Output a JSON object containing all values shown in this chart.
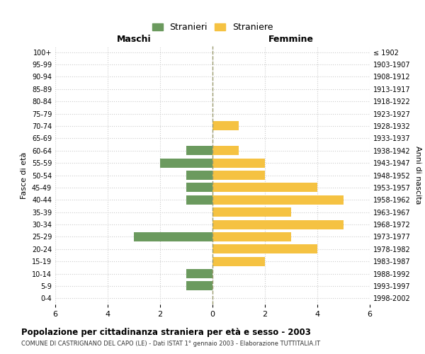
{
  "age_groups": [
    "0-4",
    "5-9",
    "10-14",
    "15-19",
    "20-24",
    "25-29",
    "30-34",
    "35-39",
    "40-44",
    "45-49",
    "50-54",
    "55-59",
    "60-64",
    "65-69",
    "70-74",
    "75-79",
    "80-84",
    "85-89",
    "90-94",
    "95-99",
    "100+"
  ],
  "birth_years": [
    "1998-2002",
    "1993-1997",
    "1988-1992",
    "1983-1987",
    "1978-1982",
    "1973-1977",
    "1968-1972",
    "1963-1967",
    "1958-1962",
    "1953-1957",
    "1948-1952",
    "1943-1947",
    "1938-1942",
    "1933-1937",
    "1928-1932",
    "1923-1927",
    "1918-1922",
    "1913-1917",
    "1908-1912",
    "1903-1907",
    "≤ 1902"
  ],
  "males": [
    0,
    1,
    1,
    0,
    0,
    3,
    0,
    0,
    1,
    1,
    1,
    2,
    1,
    0,
    0,
    0,
    0,
    0,
    0,
    0,
    0
  ],
  "females": [
    0,
    0,
    0,
    2,
    4,
    3,
    5,
    3,
    5,
    4,
    2,
    2,
    1,
    0,
    1,
    0,
    0,
    0,
    0,
    0,
    0
  ],
  "male_color": "#6b9a5e",
  "female_color": "#f5c242",
  "title": "Popolazione per cittadinanza straniera per età e sesso - 2003",
  "subtitle": "COMUNE DI CASTRIGNANO DEL CAPO (LE) - Dati ISTAT 1° gennaio 2003 - Elaborazione TUTTITALIA.IT",
  "xlabel_left": "Maschi",
  "xlabel_right": "Femmine",
  "ylabel_left": "Fasce di età",
  "ylabel_right": "Anni di nascita",
  "legend_male": "Stranieri",
  "legend_female": "Straniere",
  "xlim": 6,
  "background_color": "#ffffff",
  "grid_color": "#cccccc",
  "bar_height": 0.75,
  "dashed_color": "#9b9b6e"
}
